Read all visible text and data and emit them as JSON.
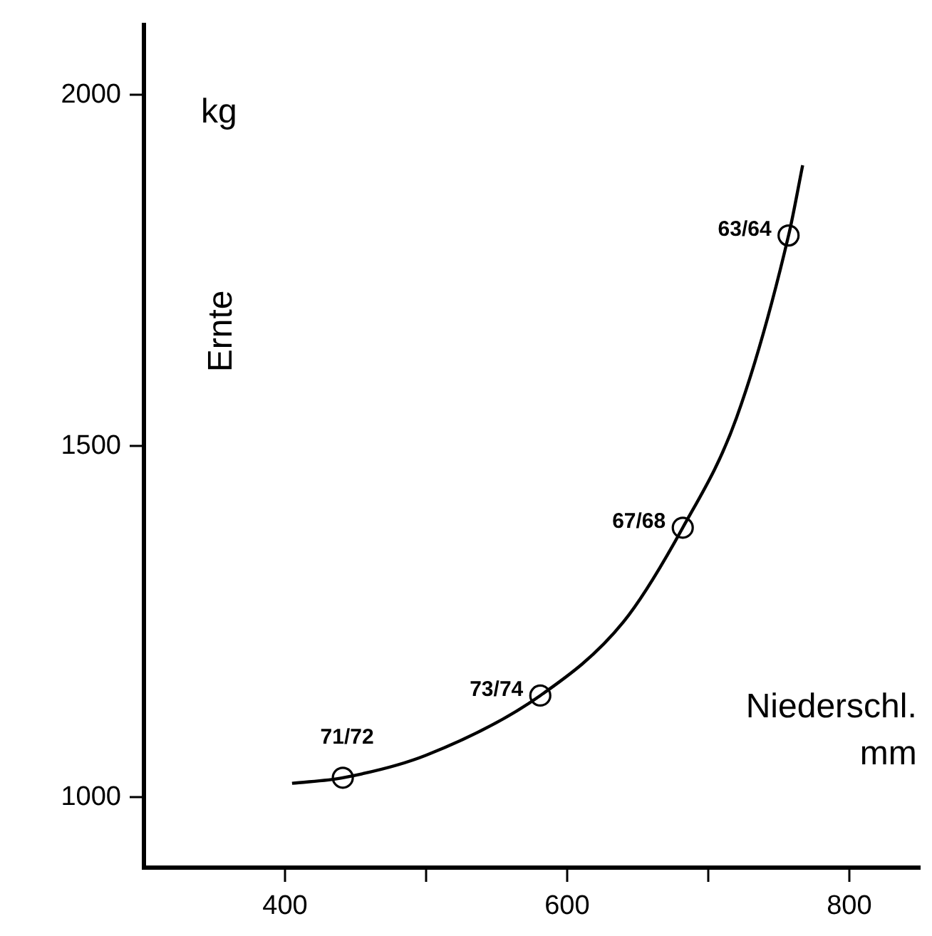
{
  "chart_data": {
    "type": "scatter",
    "xlabel": "Niederschl.",
    "ylabel": "Ernte",
    "annotations": [
      "kg",
      "mm",
      {
        "text": "71/72",
        "x": 441,
        "y": 1028
      },
      {
        "text": "73/74",
        "x": 581,
        "y": 1145
      },
      {
        "text": "67/68",
        "x": 682,
        "y": 1384
      },
      {
        "text": "63/64",
        "x": 757,
        "y": 1800
      }
    ],
    "series": [
      {
        "color": "#000000",
        "marker": "circle",
        "x": [
          441,
          581,
          682,
          757
        ],
        "values": [
          1028,
          1145,
          1384,
          1800
        ]
      },
      {
        "type": "line",
        "color": "#000000",
        "marker": "none",
        "x": [
          405,
          441,
          500,
          581,
          640,
          682,
          720,
          757,
          767
        ],
        "values": [
          1020,
          1028,
          1060,
          1145,
          1250,
          1384,
          1540,
          1800,
          1900
        ]
      }
    ],
    "xlim": [
      300,
      850
    ],
    "xticks": [
      400,
      {
        "value": 500,
        "label": null
      },
      600,
      {
        "value": 700,
        "label": null
      },
      800
    ],
    "ylim": [
      900,
      2100
    ],
    "yticks": [
      1000,
      1500,
      2000
    ],
    "grid": false,
    "legend": false,
    "line_style": "solid"
  }
}
